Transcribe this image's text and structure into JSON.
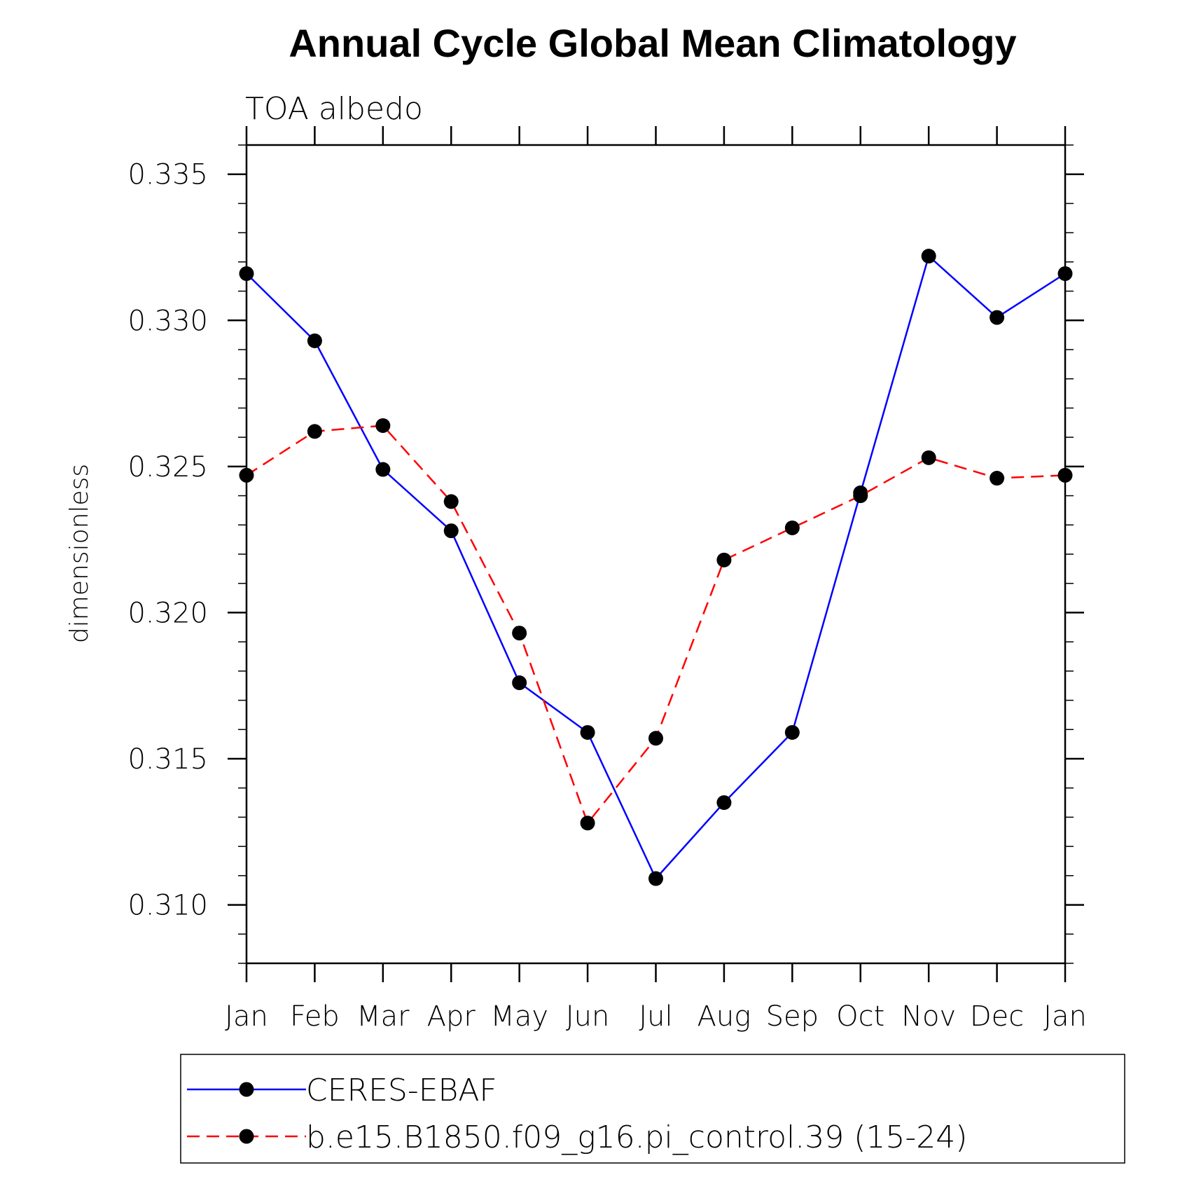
{
  "chart_data": {
    "type": "line",
    "title": "Annual Cycle Global Mean Climatology",
    "subtitle": "TOA albedo",
    "xlabel": "",
    "ylabel": "dimensionless",
    "categories": [
      "Jan",
      "Feb",
      "Mar",
      "Apr",
      "May",
      "Jun",
      "Jul",
      "Aug",
      "Sep",
      "Oct",
      "Nov",
      "Dec",
      "Jan"
    ],
    "ylim": [
      0.308,
      0.336
    ],
    "yticks": [
      "0.310",
      "0.315",
      "0.320",
      "0.325",
      "0.330",
      "0.335"
    ],
    "grid": false,
    "legend_position": "bottom",
    "series": [
      {
        "name": "CERES-EBAF",
        "color": "#0000ff",
        "line_style": "solid",
        "marker": "filled-circle",
        "values": [
          0.3316,
          0.3293,
          0.3249,
          0.3228,
          0.3176,
          0.3159,
          0.3109,
          0.3135,
          0.3159,
          0.3241,
          0.3322,
          0.3301,
          0.3316
        ]
      },
      {
        "name": "b.e15.B1850.f09_g16.pi_control.39 (15-24)",
        "color": "#ff0000",
        "line_style": "dashed",
        "marker": "filled-circle",
        "values": [
          0.3247,
          0.3262,
          0.3264,
          0.3238,
          0.3193,
          0.3128,
          0.3157,
          0.3218,
          0.3229,
          0.324,
          0.3253,
          0.3246,
          0.3247
        ]
      }
    ]
  }
}
